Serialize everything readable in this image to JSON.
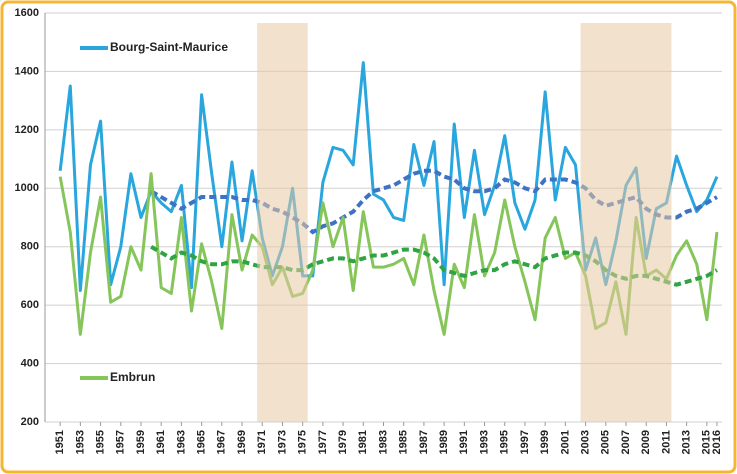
{
  "chart_data": {
    "type": "line",
    "x": [
      1951,
      1952,
      1953,
      1954,
      1955,
      1956,
      1957,
      1958,
      1959,
      1960,
      1961,
      1962,
      1963,
      1964,
      1965,
      1966,
      1967,
      1968,
      1969,
      1970,
      1971,
      1972,
      1973,
      1974,
      1975,
      1976,
      1977,
      1978,
      1979,
      1980,
      1981,
      1982,
      1983,
      1984,
      1985,
      1986,
      1987,
      1988,
      1989,
      1990,
      1991,
      1992,
      1993,
      1994,
      1995,
      1996,
      1997,
      1998,
      1999,
      2000,
      2001,
      2002,
      2003,
      2004,
      2005,
      2006,
      2007,
      2008,
      2009,
      2010,
      2011,
      2012,
      2013,
      2014,
      2015,
      2016
    ],
    "xlim": [
      1949.5,
      2016.5
    ],
    "xticks": [
      1951,
      1953,
      1955,
      1957,
      1959,
      1961,
      1963,
      1965,
      1967,
      1969,
      1971,
      1973,
      1975,
      1977,
      1979,
      1981,
      1983,
      1985,
      1987,
      1989,
      1991,
      1993,
      1995,
      1997,
      1999,
      2001,
      2003,
      2005,
      2007,
      2009,
      2011,
      2013,
      2015,
      2016
    ],
    "ylim": [
      200,
      1600
    ],
    "yticks": [
      200,
      400,
      600,
      800,
      1000,
      1200,
      1400,
      1600
    ],
    "grid": true,
    "shaded_ranges": [
      [
        1971,
        1975
      ],
      [
        2003,
        2011
      ]
    ],
    "series": [
      {
        "name": "Bourg-Saint-Maurice",
        "color": "#29a6dd",
        "trend_color": "#3f72c4",
        "values": [
          1060,
          1350,
          650,
          1080,
          1230,
          670,
          800,
          1050,
          900,
          990,
          950,
          920,
          1010,
          660,
          1320,
          1050,
          800,
          1090,
          820,
          1060,
          830,
          700,
          800,
          1000,
          700,
          700,
          1020,
          1140,
          1130,
          1080,
          1430,
          980,
          960,
          900,
          890,
          1150,
          1010,
          1160,
          670,
          1220,
          900,
          1130,
          910,
          1010,
          1180,
          950,
          860,
          960,
          1330,
          960,
          1140,
          1080,
          720,
          830,
          670,
          820,
          1010,
          1070,
          760,
          930,
          950,
          1110,
          1010,
          920,
          960,
          1040
        ],
        "trend": [
          null,
          null,
          null,
          null,
          null,
          null,
          null,
          null,
          null,
          990,
          970,
          950,
          930,
          950,
          970,
          970,
          970,
          970,
          960,
          960,
          950,
          930,
          920,
          900,
          880,
          850,
          870,
          880,
          900,
          920,
          960,
          990,
          1000,
          1010,
          1030,
          1050,
          1060,
          1060,
          1040,
          1030,
          1000,
          990,
          990,
          1000,
          1030,
          1020,
          1000,
          990,
          1030,
          1030,
          1030,
          1020,
          1000,
          960,
          940,
          950,
          960,
          970,
          930,
          910,
          900,
          900,
          920,
          930,
          950,
          970
        ]
      },
      {
        "name": "Embrun",
        "color": "#86c55a",
        "trend_color": "#2fa443",
        "values": [
          1040,
          850,
          500,
          780,
          970,
          610,
          630,
          800,
          720,
          1050,
          660,
          640,
          900,
          580,
          810,
          680,
          520,
          910,
          720,
          840,
          800,
          670,
          730,
          630,
          640,
          720,
          950,
          800,
          900,
          650,
          920,
          730,
          730,
          740,
          760,
          670,
          840,
          650,
          500,
          740,
          660,
          910,
          700,
          780,
          960,
          800,
          680,
          550,
          830,
          900,
          760,
          780,
          700,
          520,
          540,
          680,
          500,
          900,
          700,
          720,
          690,
          770,
          820,
          740,
          550,
          850
        ],
        "trend": [
          null,
          null,
          null,
          null,
          null,
          null,
          null,
          null,
          null,
          800,
          780,
          760,
          780,
          770,
          750,
          740,
          740,
          750,
          750,
          740,
          730,
          730,
          730,
          720,
          720,
          740,
          750,
          760,
          760,
          750,
          760,
          770,
          770,
          780,
          790,
          790,
          780,
          760,
          720,
          710,
          700,
          710,
          720,
          720,
          740,
          750,
          740,
          730,
          760,
          770,
          780,
          780,
          770,
          750,
          720,
          700,
          690,
          700,
          700,
          690,
          680,
          670,
          680,
          690,
          700,
          720
        ]
      }
    ]
  }
}
